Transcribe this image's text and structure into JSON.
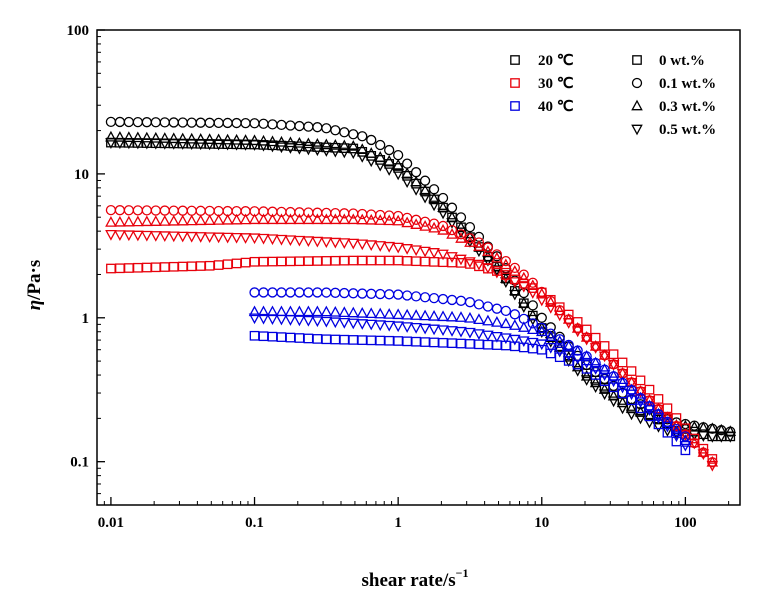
{
  "chart_data": {
    "type": "scatter",
    "title": "",
    "xlabel": "shear rate/s",
    "xlabel_sup": "−1",
    "ylabel_symbol": "η",
    "ylabel_unit": "/Pa·s",
    "xscale": "log",
    "yscale": "log",
    "xlim": [
      0.008,
      240
    ],
    "ylim": [
      0.05,
      100
    ],
    "x_ticks": [
      0.01,
      0.1,
      1,
      10,
      100
    ],
    "x_tick_labels": [
      "0.01",
      "0.1",
      "1",
      "10",
      "100"
    ],
    "y_ticks": [
      0.1,
      1,
      10,
      100
    ],
    "y_tick_labels": [
      "0.1",
      "1",
      "10",
      "100"
    ],
    "grid": false,
    "legend_temperature": [
      {
        "label": "20 ℃",
        "color": "#000000"
      },
      {
        "label": "30 ℃",
        "color": "#e8000b"
      },
      {
        "label": "40 ℃",
        "color": "#0000e0"
      }
    ],
    "legend_concentration": [
      {
        "label": "0 wt.%",
        "marker": "square"
      },
      {
        "label": "0.1 wt.%",
        "marker": "circle"
      },
      {
        "label": "0.3 wt.%",
        "marker": "triangle-up"
      },
      {
        "label": "0.5 wt.%",
        "marker": "triangle-down"
      }
    ],
    "series": [
      {
        "temperature": "20 ℃",
        "concentration": "0 wt.%",
        "color": "#000000",
        "marker": "square",
        "points": [
          [
            0.01,
            16.5
          ],
          [
            0.1,
            16
          ],
          [
            0.5,
            15
          ],
          [
            1,
            11
          ],
          [
            2,
            6
          ],
          [
            5,
            2.2
          ],
          [
            10,
            0.85
          ],
          [
            20,
            0.42
          ],
          [
            40,
            0.24
          ],
          [
            80,
            0.18
          ],
          [
            150,
            0.15
          ],
          [
            220,
            0.15
          ]
        ]
      },
      {
        "temperature": "20 ℃",
        "concentration": "0.1 wt.%",
        "color": "#000000",
        "marker": "circle",
        "points": [
          [
            0.01,
            23
          ],
          [
            0.1,
            22.5
          ],
          [
            0.3,
            21
          ],
          [
            0.6,
            18
          ],
          [
            1,
            13.5
          ],
          [
            2,
            7
          ],
          [
            5,
            2.6
          ],
          [
            10,
            1
          ],
          [
            20,
            0.48
          ],
          [
            40,
            0.28
          ],
          [
            80,
            0.19
          ],
          [
            150,
            0.17
          ],
          [
            220,
            0.16
          ]
        ]
      },
      {
        "temperature": "20 ℃",
        "concentration": "0.3 wt.%",
        "color": "#000000",
        "marker": "triangle-up",
        "points": [
          [
            0.01,
            18
          ],
          [
            0.1,
            17
          ],
          [
            0.5,
            15.5
          ],
          [
            1,
            11.5
          ],
          [
            2,
            6
          ],
          [
            5,
            2.2
          ],
          [
            10,
            0.85
          ],
          [
            20,
            0.4
          ],
          [
            40,
            0.24
          ],
          [
            80,
            0.18
          ],
          [
            150,
            0.17
          ],
          [
            220,
            0.16
          ]
        ]
      },
      {
        "temperature": "20 ℃",
        "concentration": "0.5 wt.%",
        "color": "#000000",
        "marker": "triangle-down",
        "points": [
          [
            0.01,
            16.5
          ],
          [
            0.1,
            16
          ],
          [
            0.5,
            14
          ],
          [
            1,
            10
          ],
          [
            2,
            5.5
          ],
          [
            5,
            2.1
          ],
          [
            10,
            0.8
          ],
          [
            20,
            0.38
          ],
          [
            40,
            0.22
          ],
          [
            80,
            0.16
          ],
          [
            150,
            0.15
          ],
          [
            220,
            0.15
          ]
        ]
      },
      {
        "temperature": "30 ℃",
        "concentration": "0 wt.%",
        "color": "#e8000b",
        "marker": "square",
        "points": [
          [
            0.01,
            2.2
          ],
          [
            0.05,
            2.3
          ],
          [
            0.1,
            2.45
          ],
          [
            0.5,
            2.5
          ],
          [
            1,
            2.5
          ],
          [
            3,
            2.4
          ],
          [
            5,
            2.1
          ],
          [
            10,
            1.5
          ],
          [
            20,
            0.85
          ],
          [
            40,
            0.45
          ],
          [
            80,
            0.22
          ],
          [
            160,
            0.1
          ]
        ]
      },
      {
        "temperature": "30 ℃",
        "concentration": "0.1 wt.%",
        "color": "#e8000b",
        "marker": "circle",
        "points": [
          [
            0.01,
            5.6
          ],
          [
            0.1,
            5.5
          ],
          [
            0.5,
            5.3
          ],
          [
            1,
            5.1
          ],
          [
            2,
            4.4
          ],
          [
            4,
            3.2
          ],
          [
            8,
            1.9
          ],
          [
            15,
            1
          ],
          [
            30,
            0.5
          ],
          [
            60,
            0.25
          ],
          [
            120,
            0.13
          ],
          [
            160,
            0.095
          ]
        ]
      },
      {
        "temperature": "30 ℃",
        "concentration": "0.3 wt.%",
        "color": "#e8000b",
        "marker": "triangle-up",
        "points": [
          [
            0.01,
            4.6
          ],
          [
            0.1,
            4.8
          ],
          [
            0.5,
            4.8
          ],
          [
            1,
            4.7
          ],
          [
            2,
            4.1
          ],
          [
            4,
            3
          ],
          [
            8,
            1.8
          ],
          [
            15,
            1
          ],
          [
            30,
            0.5
          ],
          [
            60,
            0.25
          ],
          [
            120,
            0.13
          ],
          [
            160,
            0.095
          ]
        ]
      },
      {
        "temperature": "30 ℃",
        "concentration": "0.5 wt.%",
        "color": "#e8000b",
        "marker": "triangle-down",
        "points": [
          [
            0.01,
            3.8
          ],
          [
            0.1,
            3.6
          ],
          [
            0.5,
            3.3
          ],
          [
            1,
            3.1
          ],
          [
            2,
            2.8
          ],
          [
            4,
            2.3
          ],
          [
            8,
            1.6
          ],
          [
            15,
            0.95
          ],
          [
            30,
            0.5
          ],
          [
            60,
            0.25
          ],
          [
            120,
            0.13
          ],
          [
            160,
            0.09
          ]
        ]
      },
      {
        "temperature": "40 ℃",
        "concentration": "0 wt.%",
        "color": "#0000e0",
        "marker": "square",
        "points": [
          [
            0.1,
            0.75
          ],
          [
            0.3,
            0.71
          ],
          [
            1,
            0.69
          ],
          [
            3,
            0.66
          ],
          [
            6,
            0.64
          ],
          [
            10,
            0.6
          ],
          [
            20,
            0.45
          ],
          [
            40,
            0.28
          ],
          [
            70,
            0.17
          ],
          [
            100,
            0.12
          ]
        ]
      },
      {
        "temperature": "40 ℃",
        "concentration": "0.1 wt.%",
        "color": "#0000e0",
        "marker": "circle",
        "points": [
          [
            0.1,
            1.5
          ],
          [
            0.3,
            1.5
          ],
          [
            1,
            1.45
          ],
          [
            3,
            1.3
          ],
          [
            6,
            1.1
          ],
          [
            10,
            0.85
          ],
          [
            20,
            0.55
          ],
          [
            40,
            0.33
          ],
          [
            70,
            0.2
          ],
          [
            100,
            0.15
          ]
        ]
      },
      {
        "temperature": "40 ℃",
        "concentration": "0.3 wt.%",
        "color": "#0000e0",
        "marker": "triangle-up",
        "points": [
          [
            0.1,
            1.1
          ],
          [
            0.3,
            1.1
          ],
          [
            1,
            1.05
          ],
          [
            3,
            1
          ],
          [
            6,
            0.9
          ],
          [
            10,
            0.8
          ],
          [
            20,
            0.55
          ],
          [
            40,
            0.33
          ],
          [
            70,
            0.2
          ],
          [
            100,
            0.14
          ]
        ]
      },
      {
        "temperature": "40 ℃",
        "concentration": "0.5 wt.%",
        "color": "#0000e0",
        "marker": "triangle-down",
        "points": [
          [
            0.1,
            1
          ],
          [
            0.3,
            0.95
          ],
          [
            1,
            0.88
          ],
          [
            3,
            0.8
          ],
          [
            6,
            0.72
          ],
          [
            10,
            0.66
          ],
          [
            20,
            0.5
          ],
          [
            40,
            0.31
          ],
          [
            70,
            0.19
          ],
          [
            100,
            0.13
          ]
        ]
      }
    ]
  }
}
